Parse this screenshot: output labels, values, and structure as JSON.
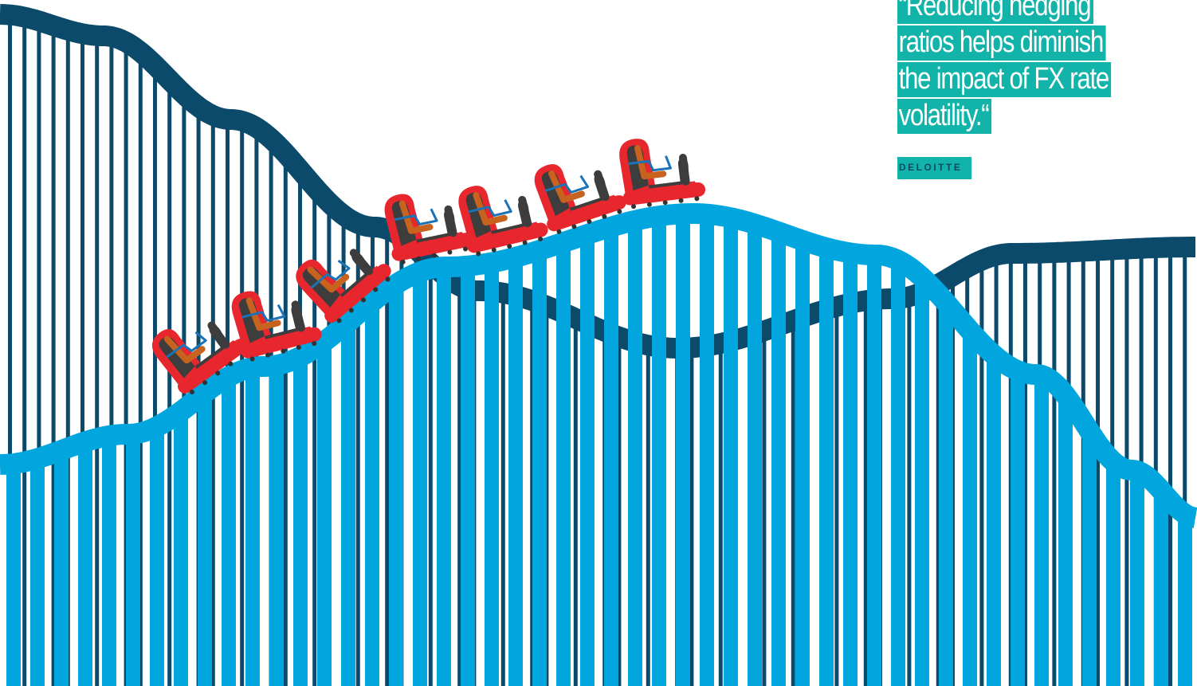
{
  "quote": {
    "lines": [
      "“Reducing hedging",
      "ratios helps diminish",
      "the impact of FX rate",
      "volatility.“"
    ],
    "source": "DELOITTE"
  },
  "colors": {
    "dark_track": "#0b4a6a",
    "light_track": "#00a6dd",
    "quote_bg": "#12b3a9",
    "car_body": "#e8262e",
    "seat": "#3d3d3d",
    "seat_back": "#c8621f",
    "harness": "#1a73b8"
  },
  "icons": [
    "roller-coaster-car-icon"
  ]
}
